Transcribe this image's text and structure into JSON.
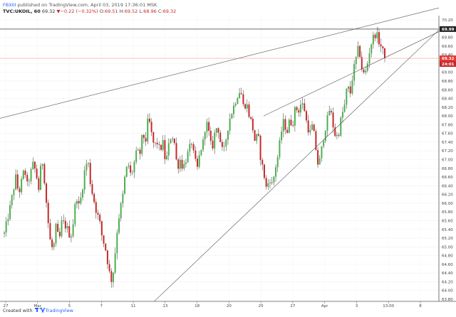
{
  "header": {
    "author": "FBXIII",
    "published": "published on TradingView.com, April 03, 2019 17:36:01 MSK",
    "symbol": "TVC:UKOIL, 60",
    "last": "69.32",
    "change": "▼−0.22 (−0.32%)",
    "o_label": "O:",
    "o_value": "69.51",
    "h_label": "H:",
    "h_value": "69.52",
    "l_label": "L:",
    "l_value": "68.96",
    "c_label": "C:",
    "c_value": "69.32"
  },
  "footer": {
    "created_with": "Created with",
    "brand": "TradingView"
  },
  "colors": {
    "up": "#4caf50",
    "down": "#c62828",
    "wick": "#333333",
    "price_tag": "#e53935",
    "high_tag": "#222222",
    "countdown_tag": "#c62828",
    "trendline": "#555555",
    "hline": "#e5a48f"
  },
  "chart_data": {
    "type": "candlestick",
    "symbol": "TVC:UKOIL",
    "timeframe": "60",
    "y_axis": {
      "min": 63.8,
      "max": 70.2,
      "ticks": [
        "70.20",
        "70.00",
        "69.80",
        "69.60",
        "69.40",
        "69.20",
        "69.00",
        "68.80",
        "68.60",
        "68.40",
        "68.20",
        "68.00",
        "67.80",
        "67.60",
        "67.40",
        "67.20",
        "67.00",
        "66.80",
        "66.60",
        "66.40",
        "66.20",
        "66.00",
        "65.80",
        "65.60",
        "65.40",
        "65.20",
        "65.00",
        "64.80",
        "64.60",
        "64.40",
        "64.20",
        "64.00",
        "63.80"
      ]
    },
    "x_axis": {
      "ticks": [
        "27",
        "Mar",
        "5",
        "7",
        "11",
        "13",
        "18",
        "20",
        "25",
        "27",
        "Apr",
        "3",
        "13:00",
        "8"
      ]
    },
    "price_labels": {
      "high_marker": "69.99",
      "last_price": "69.32",
      "countdown": "24:01"
    },
    "trendlines": [
      {
        "p1": [
          0,
          67.97
        ],
        "p2": [
          130,
          70.13
        ]
      },
      {
        "p1": [
          90,
          68.0
        ],
        "p2": [
          130,
          69.27
        ]
      },
      {
        "p1": [
          52,
          63.75
        ],
        "p2": [
          130,
          68.66
        ]
      }
    ],
    "hlines": [
      69.99,
      69.32
    ],
    "path": [
      [
        0,
        65.3
      ],
      [
        2,
        65.9
      ],
      [
        4,
        66.6
      ],
      [
        5,
        66.2
      ],
      [
        7,
        66.8
      ],
      [
        8,
        66.4
      ],
      [
        10,
        66.9
      ],
      [
        11,
        66.7
      ],
      [
        12,
        66.3
      ],
      [
        13,
        67.1
      ],
      [
        14,
        66.5
      ],
      [
        15,
        65.7
      ],
      [
        16,
        65.1
      ],
      [
        17,
        64.9
      ],
      [
        18,
        65.5
      ],
      [
        19,
        65.1
      ],
      [
        20,
        65.6
      ],
      [
        22,
        65.4
      ],
      [
        23,
        65.2
      ],
      [
        24,
        65.6
      ],
      [
        25,
        66.2
      ],
      [
        26,
        65.9
      ],
      [
        27,
        66.3
      ],
      [
        28,
        66.8
      ],
      [
        29,
        67.0
      ],
      [
        30,
        66.4
      ],
      [
        31,
        66.1
      ],
      [
        32,
        65.8
      ],
      [
        33,
        65.6
      ],
      [
        34,
        65.2
      ],
      [
        35,
        65.0
      ],
      [
        36,
        64.6
      ],
      [
        37,
        64.2
      ],
      [
        38,
        64.5
      ],
      [
        39,
        65.3
      ],
      [
        40,
        65.8
      ],
      [
        41,
        66.1
      ],
      [
        42,
        66.7
      ],
      [
        43,
        66.9
      ],
      [
        44,
        66.6
      ],
      [
        45,
        66.9
      ],
      [
        46,
        67.2
      ],
      [
        47,
        67.1
      ],
      [
        48,
        67.6
      ],
      [
        49,
        67.4
      ],
      [
        50,
        68.0
      ],
      [
        51,
        67.6
      ],
      [
        52,
        67.3
      ],
      [
        53,
        67.4
      ],
      [
        54,
        67.2
      ],
      [
        55,
        67.4
      ],
      [
        56,
        66.9
      ],
      [
        57,
        67.3
      ],
      [
        58,
        67.6
      ],
      [
        59,
        67.4
      ],
      [
        60,
        66.8
      ],
      [
        61,
        67.0
      ],
      [
        62,
        66.8
      ],
      [
        63,
        67.0
      ],
      [
        64,
        67.2
      ],
      [
        65,
        67.4
      ],
      [
        66,
        67.0
      ],
      [
        67,
        66.8
      ],
      [
        68,
        67.2
      ],
      [
        69,
        67.4
      ],
      [
        70,
        67.9
      ],
      [
        71,
        67.6
      ],
      [
        72,
        67.2
      ],
      [
        73,
        67.6
      ],
      [
        74,
        67.8
      ],
      [
        75,
        67.4
      ],
      [
        76,
        67.1
      ],
      [
        77,
        67.5
      ],
      [
        78,
        67.9
      ],
      [
        79,
        68.1
      ],
      [
        80,
        68.3
      ],
      [
        81,
        68.5
      ],
      [
        82,
        68.6
      ],
      [
        83,
        68.2
      ],
      [
        84,
        68.3
      ],
      [
        85,
        68.0
      ],
      [
        86,
        67.8
      ],
      [
        87,
        67.4
      ],
      [
        88,
        67.6
      ],
      [
        89,
        67.0
      ],
      [
        90,
        66.7
      ],
      [
        91,
        66.3
      ],
      [
        92,
        66.6
      ],
      [
        93,
        66.4
      ],
      [
        94,
        66.8
      ],
      [
        95,
        67.1
      ],
      [
        96,
        67.6
      ],
      [
        97,
        67.9
      ],
      [
        98,
        67.6
      ],
      [
        99,
        67.9
      ],
      [
        100,
        67.8
      ],
      [
        101,
        68.2
      ],
      [
        102,
        68.1
      ],
      [
        103,
        68.3
      ],
      [
        104,
        68.2
      ],
      [
        105,
        67.8
      ],
      [
        106,
        67.6
      ],
      [
        107,
        67.8
      ],
      [
        108,
        67.3
      ],
      [
        109,
        66.8
      ],
      [
        110,
        67.2
      ],
      [
        111,
        67.6
      ],
      [
        112,
        67.9
      ],
      [
        113,
        68.2
      ],
      [
        114,
        67.8
      ],
      [
        115,
        67.5
      ],
      [
        116,
        67.6
      ],
      [
        117,
        68.0
      ],
      [
        118,
        68.2
      ],
      [
        119,
        68.7
      ],
      [
        120,
        68.5
      ],
      [
        121,
        69.0
      ],
      [
        122,
        69.3
      ],
      [
        123,
        69.6
      ],
      [
        124,
        69.1
      ],
      [
        125,
        68.9
      ],
      [
        126,
        69.2
      ],
      [
        127,
        69.6
      ],
      [
        128,
        69.8
      ],
      [
        129,
        69.9
      ],
      [
        130,
        69.7
      ],
      [
        131,
        69.55
      ],
      [
        132,
        69.32
      ]
    ]
  }
}
